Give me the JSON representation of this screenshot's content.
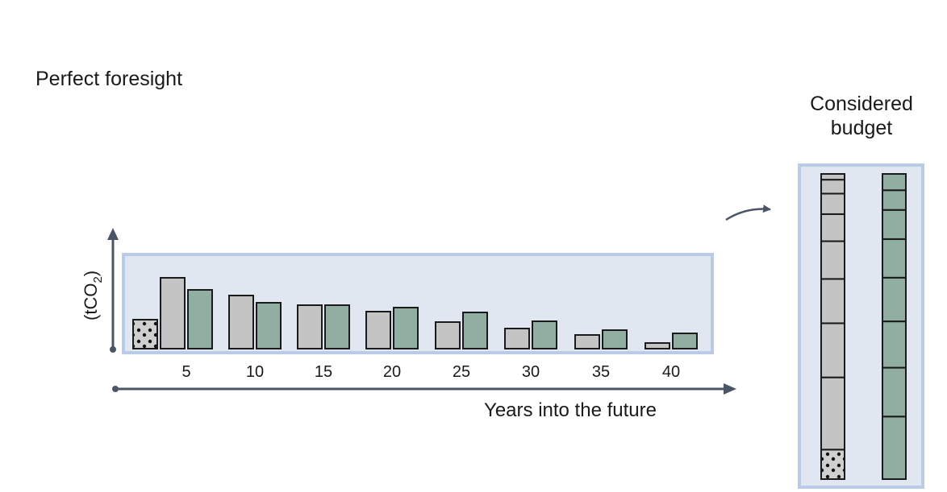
{
  "figure": {
    "title": "Perfect foresight",
    "budget_label_line1": "Considered",
    "budget_label_line2": "budget",
    "y_label_main": "(tCO",
    "y_label_sub": "2",
    "y_label_close": ")",
    "x_label": "Years into the future"
  },
  "colors": {
    "panel_fill": "#e1e7f1",
    "panel_border": "#b9cbe6",
    "grey_bar": "#c4c4c4",
    "green_bar": "#91aea2",
    "axis": "#4a5568",
    "stroke": "#1a1a1a"
  },
  "chart_data": {
    "type": "bar",
    "categories": [
      "5",
      "10",
      "15",
      "20",
      "25",
      "30",
      "35",
      "40"
    ],
    "dotted_first_value": 36,
    "series": [
      {
        "values": [
          88,
          66,
          54,
          46,
          33,
          25,
          17,
          7
        ]
      },
      {
        "values": [
          73,
          57,
          54,
          51,
          45,
          34,
          23,
          19
        ]
      }
    ],
    "x_ticks": [
      "5",
      "10",
      "15",
      "20",
      "25",
      "30",
      "35",
      "40"
    ]
  },
  "budget": {
    "grey_segments": [
      36,
      88,
      66,
      54,
      46,
      33,
      25,
      17,
      7
    ],
    "green_segments": [
      73,
      57,
      54,
      51,
      45,
      34,
      23,
      19
    ]
  }
}
